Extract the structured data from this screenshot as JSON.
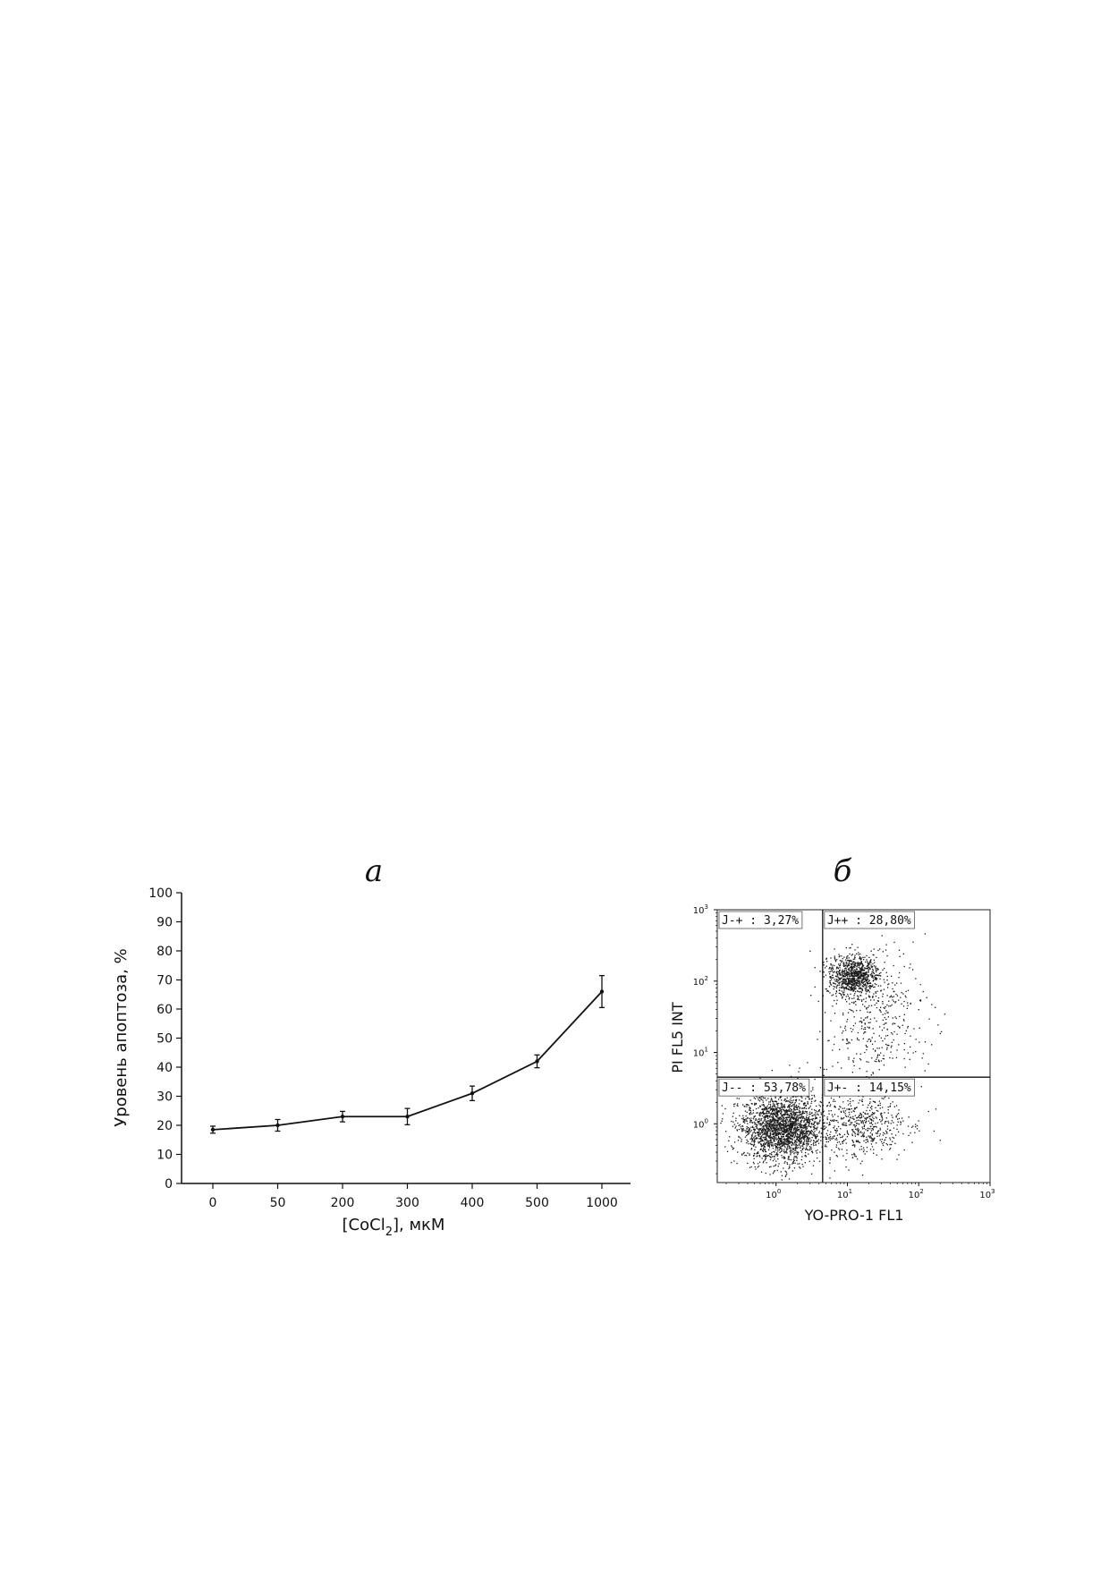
{
  "chart_data": [
    {
      "type": "line",
      "panel_label": "а",
      "categories": [
        "0",
        "50",
        "200",
        "300",
        "400",
        "500",
        "1000"
      ],
      "series": [
        {
          "values": [
            18.5,
            20,
            23,
            23,
            31,
            42,
            66
          ],
          "errors": [
            1.2,
            2,
            1.8,
            2.8,
            2.5,
            2.2,
            5.5
          ]
        }
      ],
      "ylabel": "Уровень апоптоза, %",
      "xlabel_main": "[CoCl",
      "xlabel_sub": "2",
      "xlabel_tail": "], мкМ",
      "ylim": [
        0,
        100
      ],
      "yticks": [
        "0",
        "10",
        "20",
        "30",
        "40",
        "50",
        "60",
        "70",
        "80",
        "90",
        "100"
      ],
      "grid": false
    },
    {
      "type": "scatter",
      "panel_label": "б",
      "xlabel": "YO-PRO-1 FL1",
      "ylabel": "PI FL5 INT",
      "xscale": "log",
      "yscale": "log",
      "xlim": [
        0.15,
        1000
      ],
      "ylim": [
        0.15,
        1000
      ],
      "xticks": [
        {
          "base": "10",
          "exp": "0"
        },
        {
          "base": "10",
          "exp": "1"
        },
        {
          "base": "10",
          "exp": "2"
        },
        {
          "base": "10",
          "exp": "3"
        }
      ],
      "yticks": [
        {
          "base": "10",
          "exp": "0"
        },
        {
          "base": "10",
          "exp": "1"
        },
        {
          "base": "10",
          "exp": "2"
        },
        {
          "base": "10",
          "exp": "3"
        }
      ],
      "gate": {
        "x": 4.5,
        "y": 4.5
      },
      "quadrants": [
        {
          "label": "J-+ : 3,27%",
          "value": 3.27
        },
        {
          "label": "J++ : 28,80%",
          "value": 28.8
        },
        {
          "label": "J-- : 53,78%",
          "value": 53.78
        },
        {
          "label": "J+- : 14,15%",
          "value": 14.15
        }
      ],
      "populations": [
        {
          "cx": 1.2,
          "cy": 0.9,
          "spread_x": 0.28,
          "spread_y": 0.24,
          "weight": 0.55
        },
        {
          "cx": 12,
          "cy": 120,
          "spread_x": 0.18,
          "spread_y": 0.14,
          "weight": 0.22
        },
        {
          "cx": 15,
          "cy": 1.0,
          "spread_x": 0.32,
          "spread_y": 0.22,
          "weight": 0.13
        },
        {
          "cx": 25,
          "cy": 25,
          "spread_x": 0.35,
          "spread_y": 0.5,
          "weight": 0.1
        }
      ]
    }
  ]
}
